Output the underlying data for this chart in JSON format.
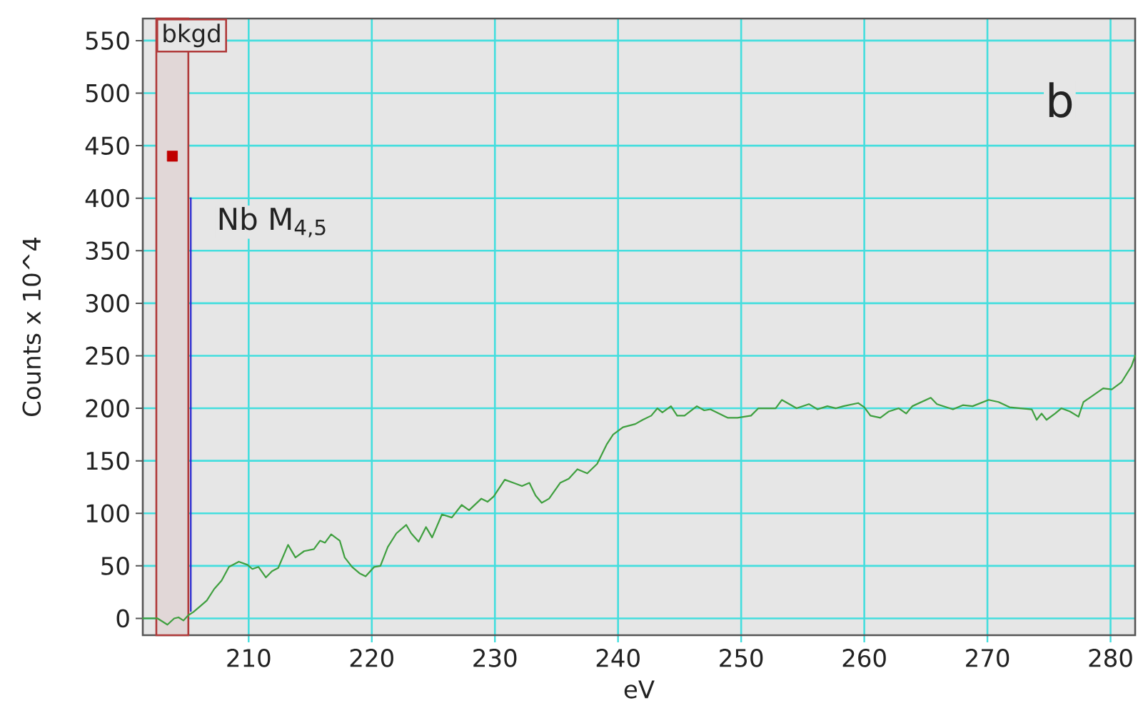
{
  "chart_data": {
    "type": "line",
    "xlabel": "eV",
    "ylabel": "Counts x 10^4",
    "xlim": [
      201.4,
      282.0
    ],
    "ylim": [
      -16,
      571
    ],
    "xticks": [
      210,
      220,
      230,
      240,
      250,
      260,
      270,
      280
    ],
    "yticks": [
      0,
      50,
      100,
      150,
      200,
      250,
      300,
      350,
      400,
      450,
      500,
      550
    ],
    "grid": true,
    "series": [
      {
        "color": "#3f9f3f",
        "x": [
          201.4,
          202.6,
          203.4,
          203.95,
          204.3,
          204.7,
          205.1,
          205.5,
          206.1,
          206.6,
          207.2,
          207.8,
          208.4,
          209.2,
          209.9,
          210.3,
          210.8,
          211.4,
          211.9,
          212.4,
          213.2,
          213.8,
          214.5,
          215.3,
          215.8,
          216.2,
          216.7,
          217.4,
          217.8,
          218.4,
          219.0,
          219.5,
          220.2,
          220.7,
          221.3,
          222.0,
          222.8,
          223.2,
          223.8,
          224.4,
          224.9,
          225.7,
          226.5,
          227.3,
          227.9,
          228.9,
          229.4,
          229.9,
          230.8,
          231.5,
          232.2,
          232.8,
          233.3,
          233.8,
          234.4,
          235.3,
          236.0,
          236.7,
          237.5,
          238.3,
          239.1,
          239.6,
          240.4,
          241.4,
          242.0,
          242.7,
          243.2,
          243.6,
          244.3,
          244.8,
          245.4,
          246.4,
          247.0,
          247.5,
          248.9,
          249.7,
          250.8,
          251.4,
          252.8,
          253.3,
          254.5,
          255.5,
          256.2,
          257.0,
          257.7,
          258.3,
          259.5,
          260.0,
          260.5,
          261.3,
          262.0,
          262.8,
          263.4,
          263.9,
          265.4,
          265.9,
          267.2,
          268.0,
          268.8,
          270.1,
          270.9,
          271.8,
          273.6,
          274.0,
          274.4,
          274.8,
          275.5,
          276.0,
          276.7,
          277.4,
          277.8,
          278.3,
          279.4,
          280.1,
          280.9,
          281.7,
          282.0
        ],
        "values": [
          0,
          0,
          -6,
          0,
          1,
          -2,
          3,
          6,
          12,
          17,
          28,
          36,
          49,
          54,
          51,
          47,
          49,
          39,
          45,
          48,
          70,
          58,
          64,
          66,
          74,
          72,
          80,
          74,
          58,
          49,
          43,
          40,
          49,
          50,
          68,
          81,
          89,
          81,
          73,
          87,
          77,
          99,
          96,
          108,
          103,
          114,
          111,
          116,
          132,
          129,
          126,
          129,
          117,
          110,
          114,
          129,
          133,
          142,
          138,
          147,
          166,
          175,
          182,
          185,
          189,
          193,
          200,
          196,
          202,
          193,
          193,
          202,
          198,
          199,
          191,
          191,
          193,
          200,
          200,
          208,
          200,
          204,
          199,
          202,
          200,
          202,
          205,
          201,
          193,
          191,
          197,
          200,
          195,
          202,
          210,
          204,
          199,
          203,
          202,
          208,
          206,
          201,
          199,
          189,
          195,
          189,
          195,
          200,
          197,
          192,
          206,
          210,
          219,
          218,
          225,
          240,
          250
        ]
      },
      {
        "type": "line",
        "color": "#2626d0",
        "x": [
          205.3,
          205.3
        ],
        "values": [
          7,
          400
        ]
      },
      {
        "type": "scatter",
        "marker": "square",
        "color": "#c00000",
        "x": [
          203.8
        ],
        "values": [
          440
        ]
      }
    ],
    "bands": [
      {
        "axis": "x",
        "from": 202.5,
        "to": 205.1,
        "label": "bkgd",
        "color": "#b03a3a"
      }
    ],
    "annotations": [
      "b",
      {
        "text": "Nb M$_{4,5}$",
        "x": 205.3,
        "y": 400
      }
    ]
  }
}
